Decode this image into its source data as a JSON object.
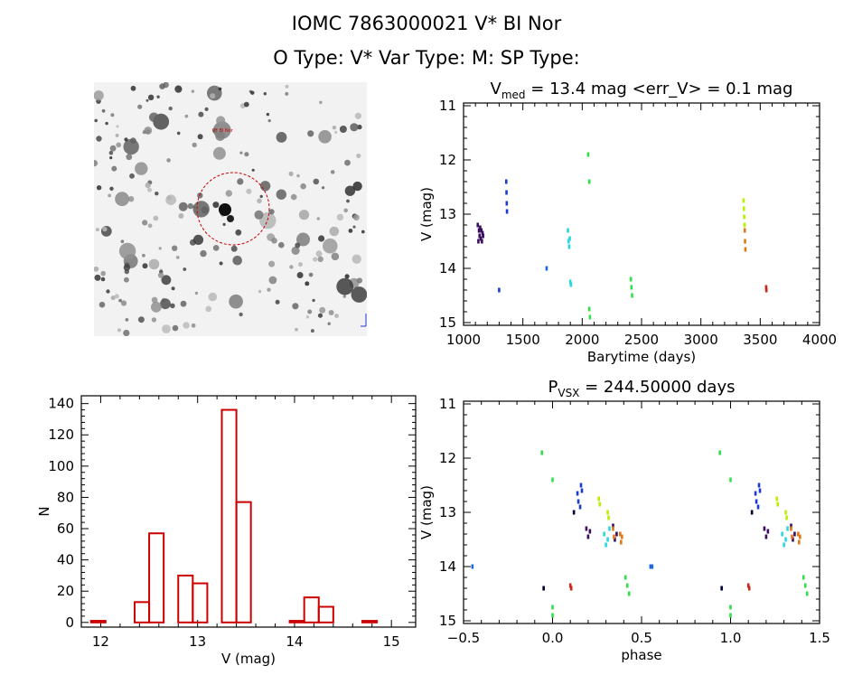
{
  "header": {
    "line1": "IOMC 7863000021    V* BI Nor",
    "line2": "O Type: V*  Var Type: M:  SP Type:"
  },
  "colors": {
    "histogram": "#cc0000",
    "circle": "#cc0000",
    "axes": "#000000",
    "sequence": [
      "#3a0d5e",
      "#1020c8",
      "#1a6ae0",
      "#28d8e0",
      "#2ee04a",
      "#b8f000",
      "#f2b800",
      "#e07818",
      "#c82818"
    ]
  },
  "chart_data": [
    {
      "id": "image",
      "type": "sky image",
      "labels": {
        "marker": "V* BI Nor"
      }
    },
    {
      "id": "lightcurve",
      "type": "scatter",
      "title": "V_med = 13.4 mag <err_V> = 0.1 mag",
      "title_parts": {
        "pre": "V",
        "sub": "med",
        "post": " = 13.4 mag <err_V> = 0.1 mag"
      },
      "xlabel": "Barytime (days)",
      "ylabel": "V (mag)",
      "xlim": [
        1000,
        4000
      ],
      "ylim": [
        15.05,
        10.95
      ],
      "xticks": [
        1000,
        1500,
        2000,
        2500,
        3000,
        3500,
        4000
      ],
      "yticks": [
        11,
        12,
        13,
        14,
        15
      ],
      "grid": false,
      "series": [
        {
          "color": "#3a0d5e",
          "points": [
            [
              1120,
              13.2
            ],
            [
              1125,
              13.5
            ],
            [
              1130,
              13.3
            ],
            [
              1135,
              13.4
            ],
            [
              1140,
              13.25
            ],
            [
              1145,
              13.45
            ],
            [
              1150,
              13.3
            ],
            [
              1155,
              13.5
            ],
            [
              1160,
              13.35
            ],
            [
              1165,
              13.4
            ]
          ]
        },
        {
          "color": "#1a3ad0",
          "points": [
            [
              1300,
              14.4
            ],
            [
              1360,
              12.4
            ],
            [
              1362,
              12.6
            ],
            [
              1364,
              12.8
            ],
            [
              1366,
              12.95
            ]
          ]
        },
        {
          "color": "#1a6ae0",
          "points": [
            [
              1700,
              14.0
            ]
          ]
        },
        {
          "color": "#28d8e0",
          "points": [
            [
              1880,
              13.3
            ],
            [
              1885,
              13.5
            ],
            [
              1890,
              13.6
            ],
            [
              1895,
              13.45
            ],
            [
              1900,
              14.25
            ],
            [
              1905,
              14.3
            ]
          ]
        },
        {
          "color": "#2ee04a",
          "points": [
            [
              2050,
              11.9
            ],
            [
              2060,
              12.4
            ],
            [
              2060,
              14.75
            ],
            [
              2065,
              14.9
            ],
            [
              2410,
              14.2
            ],
            [
              2415,
              14.35
            ],
            [
              2420,
              14.5
            ]
          ]
        },
        {
          "color": "#b8f000",
          "points": [
            [
              3360,
              12.75
            ],
            [
              3362,
              12.9
            ],
            [
              3365,
              13.05
            ],
            [
              3368,
              13.2
            ]
          ]
        },
        {
          "color": "#e07818",
          "points": [
            [
              3370,
              13.3
            ],
            [
              3372,
              13.5
            ],
            [
              3375,
              13.65
            ]
          ]
        },
        {
          "color": "#c82818",
          "points": [
            [
              3550,
              14.35
            ],
            [
              3552,
              14.4
            ]
          ]
        }
      ]
    },
    {
      "id": "histogram",
      "type": "bar",
      "xlabel": "V (mag)",
      "ylabel": "N",
      "xlim": [
        11.8,
        15.25
      ],
      "ylim": [
        -3,
        145
      ],
      "xticks": [
        12,
        13,
        14,
        15
      ],
      "yticks": [
        0,
        20,
        40,
        60,
        80,
        100,
        120,
        140
      ],
      "bin_width": 0.15,
      "bins": [
        {
          "left": 11.9,
          "count": 1
        },
        {
          "left": 12.35,
          "count": 13
        },
        {
          "left": 12.5,
          "count": 57
        },
        {
          "left": 12.8,
          "count": 30
        },
        {
          "left": 12.95,
          "count": 25
        },
        {
          "left": 13.25,
          "count": 136
        },
        {
          "left": 13.4,
          "count": 77
        },
        {
          "left": 13.95,
          "count": 1
        },
        {
          "left": 14.1,
          "count": 16
        },
        {
          "left": 14.25,
          "count": 10
        },
        {
          "left": 14.7,
          "count": 1
        }
      ]
    },
    {
      "id": "phased",
      "type": "scatter",
      "title": "P_vsx = 244.50000 days",
      "title_parts": {
        "pre": "P",
        "sub": "VSX",
        "post": " = 244.50000 days"
      },
      "xlabel": "phase",
      "ylabel": "V (mag)",
      "xlim": [
        -0.5,
        1.5
      ],
      "ylim": [
        15.05,
        10.95
      ],
      "xticks": [
        -0.5,
        0.0,
        0.5,
        1.0,
        1.5
      ],
      "xticklabels": [
        "−0.5",
        "0.0",
        "0.5",
        "1.0",
        "1.5"
      ],
      "yticks": [
        11,
        12,
        13,
        14,
        15
      ],
      "grid": false,
      "series": [
        {
          "color": "#3a0d5e",
          "points": [
            [
              0.19,
              13.3
            ],
            [
              0.2,
              13.45
            ],
            [
              0.21,
              13.35
            ],
            [
              0.34,
              13.25
            ],
            [
              0.35,
              13.5
            ],
            [
              0.36,
              13.4
            ]
          ]
        },
        {
          "color": "#1a3ad0",
          "points": [
            [
              0.14,
              12.65
            ],
            [
              0.145,
              12.8
            ],
            [
              0.16,
              12.5
            ],
            [
              0.165,
              12.6
            ],
            [
              0.155,
              12.9
            ]
          ]
        },
        {
          "color": "#1a6ae0",
          "points": [
            [
              -0.45,
              14.0
            ],
            [
              0.56,
              14.0
            ]
          ]
        },
        {
          "color": "#28d8e0",
          "points": [
            [
              0.29,
              13.4
            ],
            [
              0.3,
              13.6
            ],
            [
              0.31,
              13.5
            ],
            [
              0.32,
              13.3
            ]
          ]
        },
        {
          "color": "#2ee04a",
          "points": [
            [
              -0.06,
              11.9
            ],
            [
              0.0,
              12.4
            ],
            [
              0.0,
              14.75
            ],
            [
              0.0,
              14.9
            ],
            [
              0.41,
              14.2
            ],
            [
              0.42,
              14.35
            ],
            [
              0.43,
              14.5
            ]
          ]
        },
        {
          "color": "#b8f000",
          "points": [
            [
              0.26,
              12.75
            ],
            [
              0.265,
              12.85
            ],
            [
              0.31,
              13.0
            ],
            [
              0.315,
              13.1
            ]
          ]
        },
        {
          "color": "#e07818",
          "points": [
            [
              0.38,
              13.4
            ],
            [
              0.385,
              13.55
            ],
            [
              0.39,
              13.45
            ],
            [
              0.34,
              13.3
            ],
            [
              0.345,
              13.45
            ]
          ]
        },
        {
          "color": "#c82818",
          "points": [
            [
              0.1,
              14.35
            ],
            [
              0.105,
              14.4
            ]
          ]
        },
        {
          "color": "#000033",
          "points": [
            [
              -0.05,
              14.4
            ],
            [
              0.12,
              13.0
            ]
          ]
        }
      ],
      "repeat_offset": 1.0
    }
  ]
}
